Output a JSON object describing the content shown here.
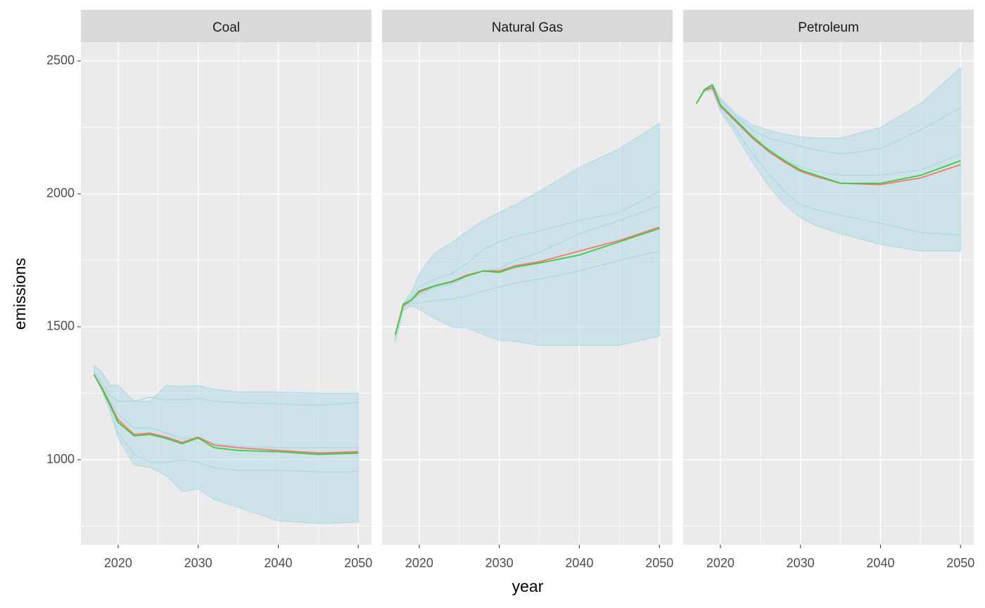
{
  "chart_data": [
    {
      "type": "line",
      "title": "Coal",
      "y_label": "emissions",
      "x": [
        2017,
        2018,
        2019,
        2020,
        2022,
        2024,
        2026,
        2028,
        2030,
        2032,
        2035,
        2040,
        2045,
        2050
      ],
      "xlim": [
        2015.35,
        2051.65
      ],
      "xticks": [
        2020,
        2030,
        2040,
        2050
      ],
      "ylim": [
        680,
        2571
      ],
      "yticks": [
        1000,
        1500,
        2000,
        2500
      ],
      "grid": true,
      "band": {
        "color": "#add8e6",
        "upper": [
          1355,
          1330,
          1280,
          1280,
          1220,
          1220,
          1280,
          1275,
          1280,
          1265,
          1255,
          1255,
          1250,
          1250
        ],
        "lower": [
          1320,
          1260,
          1180,
          1080,
          980,
          970,
          940,
          880,
          890,
          850,
          820,
          770,
          760,
          765
        ]
      },
      "series": [
        {
          "color": "#add8e6",
          "values": [
            1330,
            1290,
            1240,
            1220,
            1220,
            1235,
            1225,
            1225,
            1230,
            1220,
            1215,
            1210,
            1205,
            1215
          ]
        },
        {
          "color": "#add8e6",
          "values": [
            1320,
            1270,
            1220,
            1170,
            1120,
            1120,
            1100,
            1080,
            1080,
            1060,
            1050,
            1045,
            1045,
            1045
          ]
        },
        {
          "color": "#add8e6",
          "values": [
            1320,
            1260,
            1200,
            1100,
            1020,
            990,
            990,
            1000,
            990,
            970,
            960,
            960,
            955,
            955
          ]
        },
        {
          "color": "#f8766d",
          "values": [
            1320,
            1270,
            1210,
            1150,
            1095,
            1100,
            1085,
            1065,
            1085,
            1055,
            1045,
            1035,
            1025,
            1030
          ]
        },
        {
          "color": "#3acc3a",
          "values": [
            1320,
            1265,
            1205,
            1140,
            1090,
            1095,
            1080,
            1060,
            1082,
            1045,
            1035,
            1030,
            1020,
            1025
          ]
        }
      ]
    },
    {
      "type": "line",
      "title": "Natural Gas",
      "x_label": "year",
      "x": [
        2017,
        2018,
        2019,
        2020,
        2022,
        2024,
        2026,
        2028,
        2030,
        2032,
        2035,
        2040,
        2045,
        2050
      ],
      "xlim": [
        2015.35,
        2051.65
      ],
      "xticks": [
        2020,
        2030,
        2040,
        2050
      ],
      "ylim": [
        680,
        2571
      ],
      "yticks": [
        1000,
        1500,
        2000,
        2500
      ],
      "grid": true,
      "band": {
        "color": "#add8e6",
        "upper": [
          1470,
          1590,
          1630,
          1700,
          1780,
          1815,
          1860,
          1900,
          1930,
          1960,
          2010,
          2100,
          2170,
          2265
        ],
        "lower": [
          1440,
          1560,
          1580,
          1565,
          1530,
          1500,
          1495,
          1470,
          1450,
          1445,
          1430,
          1430,
          1430,
          1465
        ]
      },
      "series": [
        {
          "color": "#add8e6",
          "values": [
            1470,
            1585,
            1610,
            1650,
            1680,
            1700,
            1740,
            1790,
            1820,
            1840,
            1860,
            1900,
            1930,
            2010
          ]
        },
        {
          "color": "#add8e6",
          "values": [
            1470,
            1580,
            1600,
            1620,
            1650,
            1660,
            1690,
            1710,
            1720,
            1750,
            1780,
            1850,
            1900,
            1955
          ]
        },
        {
          "color": "#add8e6",
          "values": [
            1465,
            1575,
            1590,
            1590,
            1600,
            1605,
            1615,
            1635,
            1650,
            1665,
            1680,
            1710,
            1750,
            1785
          ]
        },
        {
          "color": "#f8766d",
          "values": [
            1470,
            1580,
            1600,
            1630,
            1655,
            1670,
            1695,
            1710,
            1710,
            1730,
            1745,
            1785,
            1825,
            1875
          ]
        },
        {
          "color": "#3acc3a",
          "values": [
            1470,
            1585,
            1600,
            1635,
            1655,
            1668,
            1692,
            1710,
            1705,
            1725,
            1740,
            1770,
            1820,
            1870
          ]
        }
      ]
    },
    {
      "type": "line",
      "title": "Petroleum",
      "x": [
        2017,
        2018,
        2019,
        2020,
        2022,
        2024,
        2026,
        2028,
        2030,
        2032,
        2035,
        2040,
        2045,
        2050
      ],
      "xlim": [
        2015.35,
        2051.65
      ],
      "xticks": [
        2020,
        2030,
        2040,
        2050
      ],
      "ylim": [
        680,
        2571
      ],
      "yticks": [
        1000,
        1500,
        2000,
        2500
      ],
      "grid": true,
      "band": {
        "color": "#add8e6",
        "upper": [
          2340,
          2395,
          2415,
          2360,
          2300,
          2260,
          2240,
          2225,
          2215,
          2210,
          2210,
          2250,
          2340,
          2475
        ],
        "lower": [
          2340,
          2385,
          2390,
          2310,
          2220,
          2120,
          2030,
          1960,
          1910,
          1880,
          1850,
          1810,
          1785,
          1785
        ]
      },
      "series": [
        {
          "color": "#add8e6",
          "values": [
            2340,
            2395,
            2410,
            2350,
            2290,
            2240,
            2210,
            2195,
            2180,
            2165,
            2150,
            2170,
            2240,
            2325
          ]
        },
        {
          "color": "#add8e6",
          "values": [
            2340,
            2392,
            2405,
            2335,
            2280,
            2220,
            2170,
            2130,
            2100,
            2085,
            2070,
            2070,
            2090,
            2150
          ]
        },
        {
          "color": "#add8e6",
          "values": [
            2340,
            2388,
            2395,
            2320,
            2240,
            2150,
            2080,
            2010,
            1960,
            1940,
            1920,
            1890,
            1855,
            1845
          ]
        },
        {
          "color": "#f8766d",
          "values": [
            2340,
            2390,
            2400,
            2330,
            2270,
            2210,
            2160,
            2120,
            2085,
            2065,
            2040,
            2035,
            2060,
            2110
          ]
        },
        {
          "color": "#3acc3a",
          "values": [
            2340,
            2392,
            2410,
            2335,
            2275,
            2215,
            2165,
            2125,
            2090,
            2070,
            2040,
            2040,
            2070,
            2125
          ]
        }
      ]
    }
  ]
}
